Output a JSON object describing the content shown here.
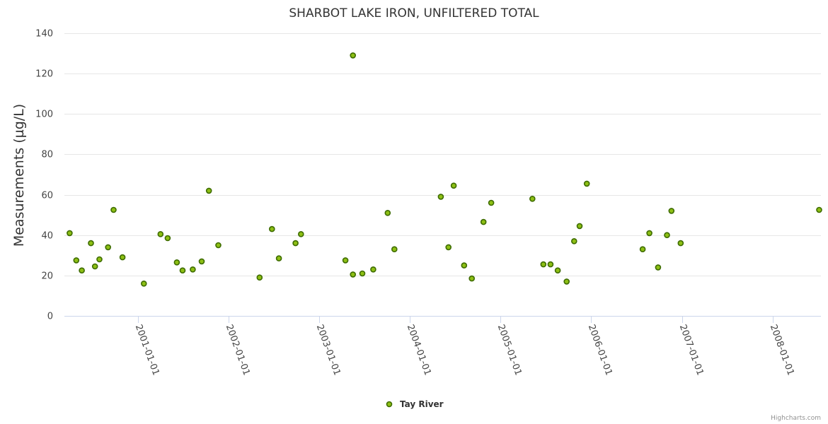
{
  "chart_data": {
    "type": "scatter",
    "title": "SHARBOT LAKE IRON, UNFILTERED TOTAL",
    "ylabel": "Measurements (µg/L)",
    "xlabel": "",
    "ylim": [
      0,
      140
    ],
    "yticks": [
      0,
      20,
      40,
      60,
      80,
      100,
      120,
      140
    ],
    "ytick_labels": [
      "0",
      "20",
      "40",
      "60",
      "80",
      "100",
      "120",
      "140"
    ],
    "xlim": [
      "2000-03-11",
      "2008-07-14"
    ],
    "xticks": [
      "2001-01-01",
      "2002-01-01",
      "2003-01-01",
      "2004-01-01",
      "2005-01-01",
      "2006-01-01",
      "2007-01-01",
      "2008-01-01"
    ],
    "grid": true,
    "legend_position": "bottom-center",
    "credits": "Highcharts.com",
    "series": [
      {
        "name": "Tay River",
        "color": "#8dbf14",
        "points": [
          [
            "2000-04-01",
            41
          ],
          [
            "2000-04-28",
            27.5
          ],
          [
            "2000-05-20",
            22.5
          ],
          [
            "2000-06-26",
            36
          ],
          [
            "2000-07-12",
            24.5
          ],
          [
            "2000-07-30",
            28
          ],
          [
            "2000-09-03",
            34
          ],
          [
            "2000-09-25",
            52.5
          ],
          [
            "2000-10-31",
            29
          ],
          [
            "2001-01-25",
            16
          ],
          [
            "2001-04-02",
            40.5
          ],
          [
            "2001-05-01",
            38.5
          ],
          [
            "2001-06-07",
            26.5
          ],
          [
            "2001-06-30",
            22.5
          ],
          [
            "2001-08-10",
            23
          ],
          [
            "2001-09-15",
            27
          ],
          [
            "2001-10-14",
            62
          ],
          [
            "2001-11-21",
            35
          ],
          [
            "2002-05-06",
            19
          ],
          [
            "2002-06-25",
            43
          ],
          [
            "2002-07-23",
            28.5
          ],
          [
            "2002-09-28",
            36
          ],
          [
            "2002-10-20",
            40.5
          ],
          [
            "2003-04-17",
            27.5
          ],
          [
            "2003-05-17",
            129
          ],
          [
            "2003-05-17",
            20.5
          ],
          [
            "2003-06-24",
            21
          ],
          [
            "2003-08-07",
            23
          ],
          [
            "2003-10-04",
            51
          ],
          [
            "2003-10-31",
            33
          ],
          [
            "2004-05-05",
            59
          ],
          [
            "2004-06-05",
            34
          ],
          [
            "2004-06-26",
            64.5
          ],
          [
            "2004-08-07",
            25
          ],
          [
            "2004-09-07",
            18.5
          ],
          [
            "2004-10-24",
            46.5
          ],
          [
            "2004-11-24",
            56
          ],
          [
            "2005-05-09",
            58
          ],
          [
            "2005-06-22",
            25.5
          ],
          [
            "2005-07-21",
            25.5
          ],
          [
            "2005-08-19",
            22.5
          ],
          [
            "2005-09-24",
            17
          ],
          [
            "2005-10-24",
            37
          ],
          [
            "2005-11-15",
            44.5
          ],
          [
            "2005-12-14",
            65.5
          ],
          [
            "2006-07-27",
            33
          ],
          [
            "2006-08-23",
            41
          ],
          [
            "2006-09-27",
            24
          ],
          [
            "2006-11-02",
            40
          ],
          [
            "2006-11-20",
            52
          ],
          [
            "2006-12-27",
            36
          ],
          [
            "2008-07-07",
            52.5
          ]
        ]
      }
    ]
  }
}
